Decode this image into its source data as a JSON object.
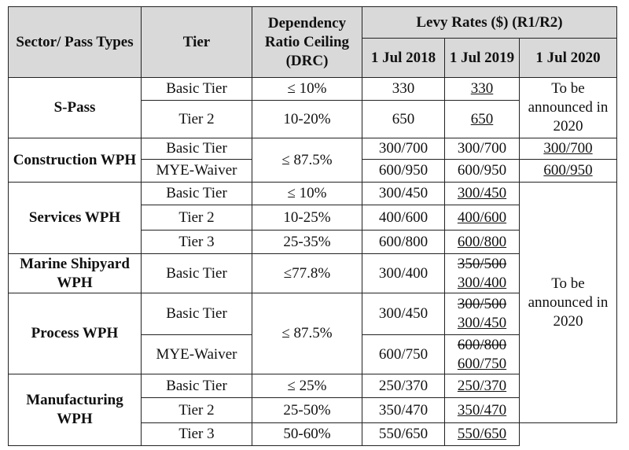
{
  "header": {
    "sector": "Sector/ Pass Types",
    "tier": "Tier",
    "drc": "Dependency Ratio Ceiling (DRC)",
    "levy": "Levy Rates ($) (R1/R2)",
    "d2018": "1 Jul 2018",
    "d2019": "1 Jul 2019",
    "d2020": "1 Jul 2020"
  },
  "tba": "To be announced in 2020",
  "spass": {
    "sector": "S-Pass",
    "r1": {
      "tier": "Basic Tier",
      "drc": "≤ 10%",
      "y2018": "330",
      "y2019": "330"
    },
    "r2": {
      "tier": "Tier 2",
      "drc": "10-20%",
      "y2018": "650",
      "y2019": "650"
    }
  },
  "construction": {
    "sector": "Construction WPH",
    "drc": "≤ 87.5%",
    "r1": {
      "tier": "Basic Tier",
      "y2018": "300/700",
      "y2019": "300/700",
      "y2020": "300/700"
    },
    "r2": {
      "tier": "MYE-Waiver",
      "y2018": "600/950",
      "y2019": "600/950",
      "y2020": "600/950"
    }
  },
  "services": {
    "sector": "Services WPH",
    "r1": {
      "tier": "Basic Tier",
      "drc": "≤ 10%",
      "y2018": "300/450",
      "y2019": "300/450"
    },
    "r2": {
      "tier": "Tier 2",
      "drc": "10-25%",
      "y2018": "400/600",
      "y2019": "400/600"
    },
    "r3": {
      "tier": "Tier 3",
      "drc": "25-35%",
      "y2018": "600/800",
      "y2019": "600/800"
    }
  },
  "marine": {
    "sector": "Marine Shipyard WPH",
    "r1": {
      "tier": "Basic Tier",
      "drc": "≤77.8%",
      "y2018": "300/400",
      "y2019_old": "350/500",
      "y2019": "300/400"
    }
  },
  "process": {
    "sector": "Process WPH",
    "drc": "≤ 87.5%",
    "r1": {
      "tier": "Basic Tier",
      "y2018": "300/450",
      "y2019_old": "300/500",
      "y2019": "300/450"
    },
    "r2": {
      "tier": "MYE-Waiver",
      "y2018": "600/750",
      "y2019_old": "600/800",
      "y2019": "600/750"
    }
  },
  "manufacturing": {
    "sector": "Manufacturing WPH",
    "r1": {
      "tier": "Basic Tier",
      "drc": "≤ 25%",
      "y2018": "250/370",
      "y2019": "250/370"
    },
    "r2": {
      "tier": "Tier 2",
      "drc": "25-50%",
      "y2018": "350/470",
      "y2019": "350/470"
    },
    "r3": {
      "tier": "Tier 3",
      "drc": "50-60%",
      "y2018": "550/650",
      "y2019": "550/650"
    }
  },
  "colors": {
    "header_bg": "#d9d9d9",
    "border": "#222222"
  }
}
